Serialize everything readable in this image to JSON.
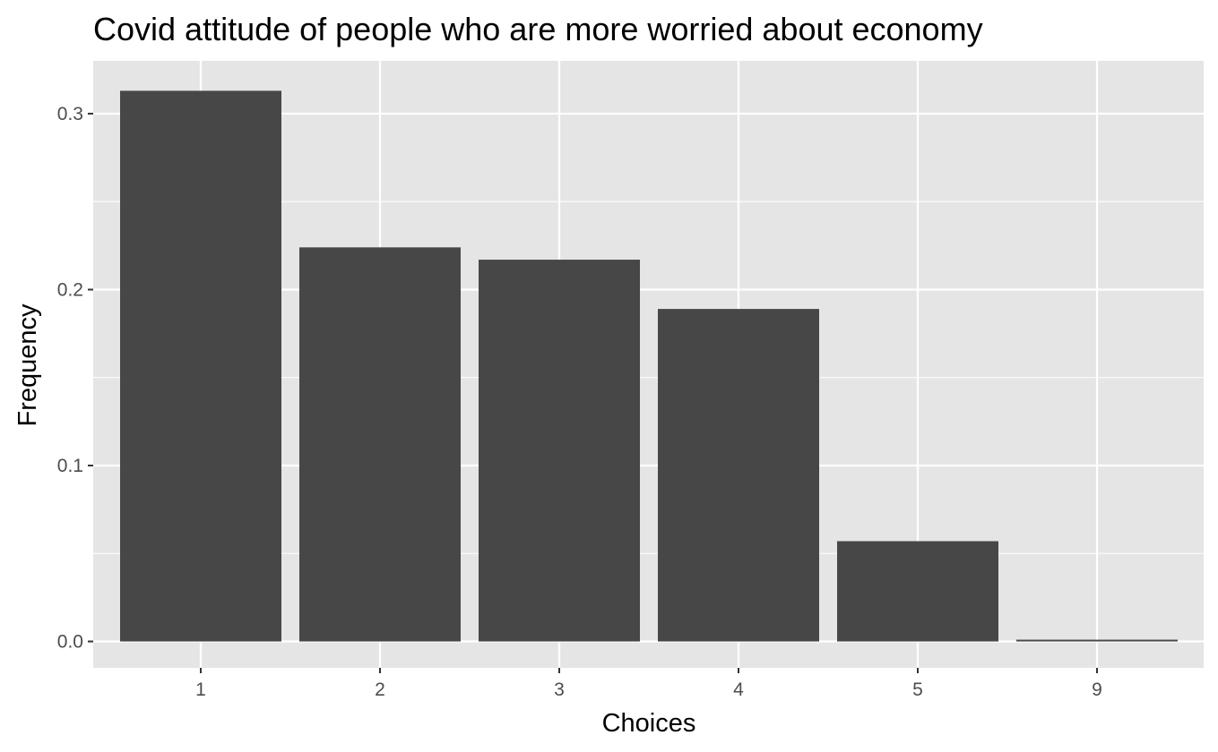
{
  "chart_data": {
    "type": "bar",
    "title": "Covid attitude of people who are more worried about economy",
    "xlabel": "Choices",
    "ylabel": "Frequency",
    "categories": [
      "1",
      "2",
      "3",
      "4",
      "5",
      "9"
    ],
    "values": [
      0.313,
      0.224,
      0.217,
      0.189,
      0.057,
      0.001
    ],
    "ylim": [
      -0.015,
      0.33
    ],
    "yticks": [
      "0.0",
      "0.1",
      "0.2",
      "0.3"
    ],
    "grid": true,
    "legend": "none",
    "colors": {
      "panel": "#e5e5e5",
      "grid": "#ffffff",
      "bar": "#474747"
    }
  }
}
